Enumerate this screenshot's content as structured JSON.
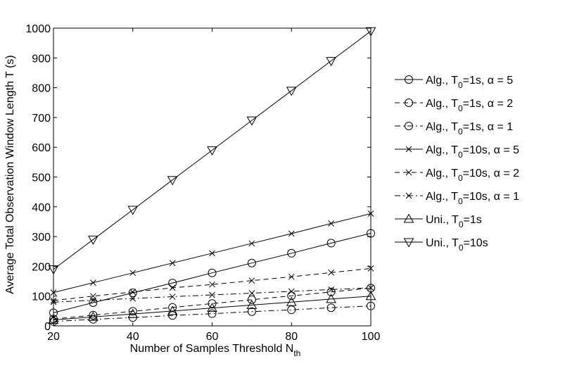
{
  "chart_data": {
    "type": "line",
    "title": "",
    "xlabel": "Number of Samples Threshold N",
    "xlabel_sub": "th",
    "ylabel": "Average Total Observation Window Length T (s)",
    "xlim": [
      20,
      100
    ],
    "ylim": [
      0,
      1000
    ],
    "x_ticks": [
      20,
      40,
      60,
      80,
      100
    ],
    "y_ticks": [
      0,
      100,
      200,
      300,
      400,
      500,
      600,
      700,
      800,
      900,
      1000
    ],
    "grid": false,
    "legend_position": "right, outside plot",
    "x": [
      20,
      30,
      40,
      50,
      60,
      70,
      80,
      90,
      100
    ],
    "series": [
      {
        "name": "Alg., T0=1s, α = 5",
        "label": {
          "pre": "Alg., T",
          "sub": "0",
          "post": "=1s, α = 5"
        },
        "linestyle": "solid",
        "marker": "circle",
        "values": [
          44,
          78,
          111,
          144,
          178,
          211,
          244,
          278,
          311
        ]
      },
      {
        "name": "Alg., T0=1s, α = 2",
        "label": {
          "pre": "Alg., T",
          "sub": "0",
          "post": "=1s, α = 2"
        },
        "linestyle": "dashed",
        "marker": "circle",
        "values": [
          23,
          36,
          49,
          62,
          75,
          88,
          101,
          114,
          127
        ]
      },
      {
        "name": "Alg., T0=1s, α = 1",
        "label": {
          "pre": "Alg., T",
          "sub": "0",
          "post": "=1s, α = 1"
        },
        "linestyle": "dashdot",
        "marker": "circle",
        "values": [
          15,
          22,
          28,
          35,
          41,
          48,
          54,
          61,
          67
        ]
      },
      {
        "name": "Alg., T0=10s, α = 5",
        "label": {
          "pre": "Alg., T",
          "sub": "0",
          "post": "=10s, α = 5"
        },
        "linestyle": "solid",
        "marker": "x",
        "values": [
          112,
          145,
          178,
          211,
          244,
          277,
          310,
          344,
          377
        ]
      },
      {
        "name": "Alg., T0=10s, α = 2",
        "label": {
          "pre": "Alg., T",
          "sub": "0",
          "post": "=10s, α = 2"
        },
        "linestyle": "dashed",
        "marker": "x",
        "values": [
          85,
          100,
          114,
          128,
          139,
          152,
          165,
          179,
          193
        ]
      },
      {
        "name": "Alg., T0=10s, α = 1",
        "label": {
          "pre": "Alg., T",
          "sub": "0",
          "post": "=10s, α = 1"
        },
        "linestyle": "dashdot",
        "marker": "x",
        "values": [
          80,
          86,
          92,
          98,
          104,
          110,
          116,
          122,
          128
        ]
      },
      {
        "name": "Uni., T0=1s",
        "label": {
          "pre": "Uni., T",
          "sub": "0",
          "post": "=1s"
        },
        "linestyle": "solid",
        "marker": "triangle-up",
        "values": [
          20,
          30,
          40,
          50,
          60,
          70,
          80,
          90,
          100
        ]
      },
      {
        "name": "Uni., T0=10s",
        "label": {
          "pre": "Uni., T",
          "sub": "0",
          "post": "=10s"
        },
        "linestyle": "solid",
        "marker": "triangle-down",
        "values": [
          190,
          290,
          390,
          490,
          590,
          690,
          790,
          890,
          990
        ]
      }
    ]
  }
}
